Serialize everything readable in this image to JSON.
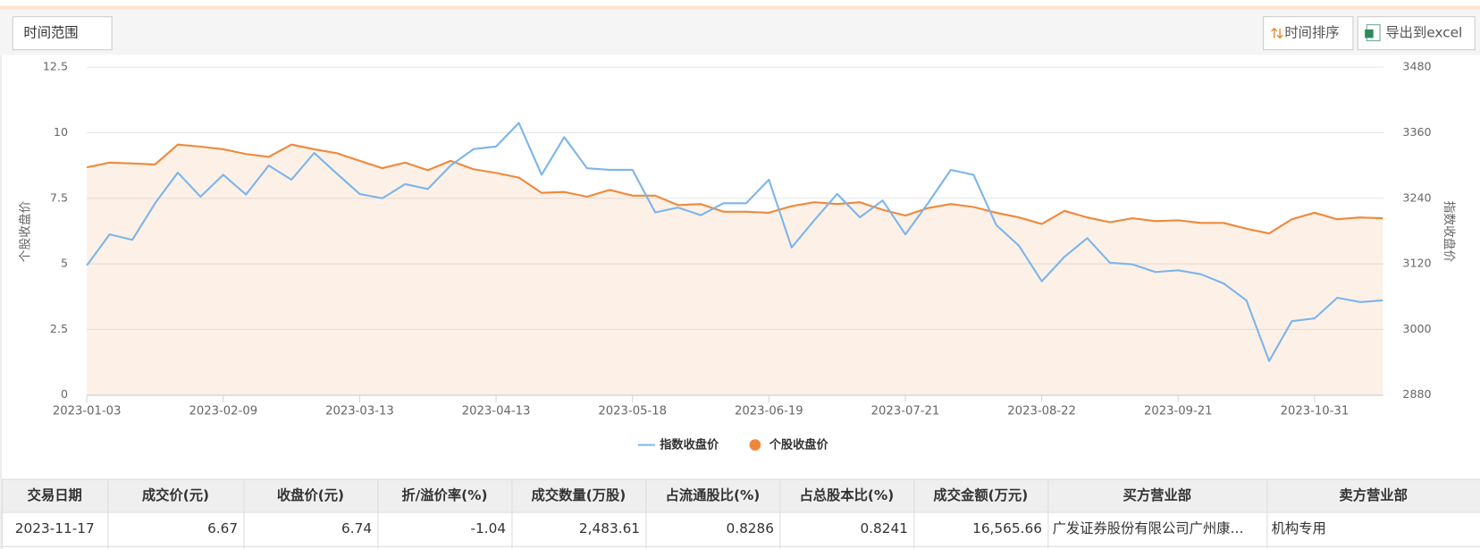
{
  "toolbar": {
    "time_range": "时间范围",
    "sort_button": "时间排序",
    "export_button": "导出到excel"
  },
  "chart_data": {
    "type": "line",
    "categories": [
      "2023-01-03",
      null,
      null,
      null,
      null,
      null,
      "2023-02-09",
      null,
      null,
      null,
      null,
      null,
      "2023-03-13",
      null,
      null,
      null,
      null,
      null,
      "2023-04-13",
      null,
      null,
      null,
      null,
      null,
      "2023-05-18",
      null,
      null,
      null,
      null,
      null,
      "2023-06-19",
      null,
      null,
      null,
      null,
      null,
      "2023-07-21",
      null,
      null,
      null,
      null,
      null,
      "2023-08-22",
      null,
      null,
      null,
      null,
      null,
      "2023-09-21",
      null,
      null,
      null,
      null,
      null,
      "2023-10-31",
      null,
      null,
      null
    ],
    "series": [
      {
        "name": "指数收盘价",
        "color": "#7cb5ec",
        "axis": "y2",
        "area": false,
        "values": [
          3117,
          3174,
          3164,
          3231,
          3287,
          3243,
          3283,
          3247,
          3300,
          3274,
          3323,
          3285,
          3248,
          3240,
          3266,
          3257,
          3300,
          3330,
          3335,
          3378,
          3283,
          3352,
          3295,
          3292,
          3292,
          3214,
          3223,
          3209,
          3231,
          3231,
          3274,
          3150,
          3200,
          3248,
          3205,
          3236,
          3174,
          3231,
          3292,
          3283,
          3191,
          3153,
          3088,
          3133,
          3167,
          3122,
          3119,
          3105,
          3108,
          3101,
          3084,
          3053,
          2942,
          3015,
          3020,
          3058,
          3050,
          3053
        ]
      },
      {
        "name": "个股收盘价",
        "color": "#f0883a",
        "axis": "y",
        "area": true,
        "values": [
          8.68,
          8.86,
          8.83,
          8.79,
          9.55,
          9.47,
          9.37,
          9.19,
          9.08,
          9.55,
          9.37,
          9.22,
          8.93,
          8.65,
          8.86,
          8.57,
          8.93,
          8.61,
          8.47,
          8.29,
          7.71,
          7.74,
          7.56,
          7.82,
          7.6,
          7.6,
          7.24,
          7.28,
          6.99,
          6.99,
          6.95,
          7.2,
          7.35,
          7.28,
          7.35,
          7.06,
          6.84,
          7.13,
          7.28,
          7.17,
          6.95,
          6.77,
          6.52,
          7.02,
          6.77,
          6.59,
          6.74,
          6.63,
          6.66,
          6.56,
          6.56,
          6.34,
          6.16,
          6.7,
          6.95,
          6.7,
          6.77,
          6.74
        ]
      }
    ],
    "ylabel": "个股收盘价",
    "y2label": "指数收盘价",
    "ylim": [
      0,
      12.5
    ],
    "yticks": [
      0,
      2.5,
      5,
      7.5,
      10,
      12.5
    ],
    "y2lim": [
      2880,
      3480
    ],
    "y2ticks": [
      2880,
      3000,
      3120,
      3240,
      3360,
      3480
    ],
    "grid": true,
    "legend": "bottom"
  },
  "table": {
    "columns": [
      "交易日期",
      "成交价(元)",
      "收盘价(元)",
      "折/溢价率(%)",
      "成交数量(万股)",
      "占流通股比(%)",
      "占总股本比(%)",
      "成交金额(万元)",
      "买方营业部",
      "卖方营业部"
    ],
    "rows": [
      [
        "2023-11-17",
        "6.67",
        "6.74",
        "-1.04",
        "2,483.61",
        "0.8286",
        "0.8241",
        "16,565.66",
        "广发证券股份有限公司广州康…",
        "机构专用"
      ]
    ]
  }
}
